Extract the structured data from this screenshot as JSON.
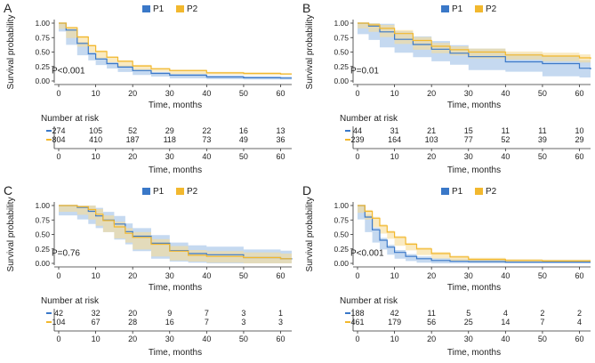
{
  "colors": {
    "p1": "#3a78c8",
    "p2": "#f2b82e",
    "p1_band": "#9fc0e6",
    "p2_band": "#f6dc97",
    "axis": "#333333",
    "text": "#222222"
  },
  "common": {
    "ylabel": "Survival probability",
    "xlabel": "Time, months",
    "risk_title": "Number at risk",
    "y_ticks": [
      "0.00",
      "0.25",
      "0.50",
      "0.75",
      "1.00"
    ],
    "x_ticks": [
      "0",
      "10",
      "20",
      "30",
      "40",
      "50",
      "60"
    ]
  },
  "chart_data": [
    {
      "type": "line",
      "panel": "A",
      "pvalue": "P<0.001",
      "legend": [
        "P1",
        "P2"
      ],
      "xlim": [
        0,
        63
      ],
      "ylim": [
        0,
        1
      ],
      "series": [
        {
          "name": "P1",
          "x": [
            0,
            2,
            5,
            8,
            10,
            13,
            16,
            20,
            25,
            30,
            40,
            50,
            60,
            63
          ],
          "y": [
            1.0,
            0.88,
            0.65,
            0.47,
            0.38,
            0.3,
            0.24,
            0.18,
            0.13,
            0.1,
            0.07,
            0.055,
            0.05,
            0.05
          ],
          "band": 0.025
        },
        {
          "name": "P2",
          "x": [
            0,
            2,
            5,
            8,
            10,
            13,
            16,
            20,
            25,
            30,
            40,
            50,
            60,
            63
          ],
          "y": [
            1.0,
            0.92,
            0.76,
            0.61,
            0.51,
            0.41,
            0.34,
            0.26,
            0.21,
            0.18,
            0.14,
            0.13,
            0.12,
            0.12
          ],
          "band": 0.018
        }
      ],
      "risk": {
        "P1": [
          "274",
          "105",
          "52",
          "29",
          "22",
          "16",
          "13"
        ],
        "P2": [
          "804",
          "410",
          "187",
          "118",
          "73",
          "49",
          "36"
        ]
      }
    },
    {
      "type": "line",
      "panel": "B",
      "pvalue": "P=0.01",
      "legend": [
        "P1",
        "P2"
      ],
      "xlim": [
        0,
        63
      ],
      "ylim": [
        0,
        1
      ],
      "series": [
        {
          "name": "P1",
          "x": [
            0,
            3,
            6,
            10,
            15,
            20,
            25,
            30,
            40,
            50,
            60,
            63
          ],
          "y": [
            1.0,
            0.95,
            0.85,
            0.72,
            0.63,
            0.55,
            0.48,
            0.42,
            0.33,
            0.3,
            0.22,
            0.2
          ],
          "band": 0.14
        },
        {
          "name": "P2",
          "x": [
            0,
            3,
            6,
            10,
            15,
            20,
            25,
            30,
            40,
            50,
            60,
            63
          ],
          "y": [
            1.0,
            0.97,
            0.91,
            0.82,
            0.7,
            0.6,
            0.54,
            0.5,
            0.45,
            0.43,
            0.4,
            0.38
          ],
          "band": 0.06
        }
      ],
      "risk": {
        "P1": [
          "44",
          "31",
          "21",
          "15",
          "11",
          "11",
          "10"
        ],
        "P2": [
          "239",
          "164",
          "103",
          "77",
          "52",
          "39",
          "29"
        ]
      }
    },
    {
      "type": "line",
      "panel": "C",
      "pvalue": "P=0.76",
      "legend": [
        "P1",
        "P2"
      ],
      "xlim": [
        0,
        63
      ],
      "ylim": [
        0,
        1
      ],
      "series": [
        {
          "name": "P1",
          "x": [
            0,
            5,
            8,
            10,
            12,
            15,
            18,
            20,
            25,
            30,
            35,
            40,
            50,
            60,
            63
          ],
          "y": [
            1.0,
            0.97,
            0.9,
            0.82,
            0.75,
            0.68,
            0.55,
            0.47,
            0.35,
            0.22,
            0.17,
            0.15,
            0.1,
            0.08,
            0.07
          ],
          "band": 0.14
        },
        {
          "name": "P2",
          "x": [
            0,
            5,
            8,
            10,
            12,
            15,
            18,
            20,
            25,
            30,
            35,
            40,
            50,
            60,
            63
          ],
          "y": [
            1.0,
            0.98,
            0.93,
            0.85,
            0.74,
            0.63,
            0.52,
            0.45,
            0.33,
            0.21,
            0.14,
            0.12,
            0.1,
            0.08,
            0.08
          ],
          "band": 0.09
        }
      ],
      "risk": {
        "P1": [
          "42",
          "32",
          "20",
          "9",
          "7",
          "3",
          "1"
        ],
        "P2": [
          "104",
          "67",
          "28",
          "16",
          "7",
          "3",
          "3"
        ]
      }
    },
    {
      "type": "line",
      "panel": "D",
      "pvalue": "P<0.001",
      "legend": [
        "P1",
        "P2"
      ],
      "xlim": [
        0,
        63
      ],
      "ylim": [
        0,
        1
      ],
      "series": [
        {
          "name": "P1",
          "x": [
            0,
            2,
            4,
            6,
            8,
            10,
            13,
            16,
            20,
            25,
            30,
            40,
            50,
            60,
            63
          ],
          "y": [
            1.0,
            0.8,
            0.58,
            0.4,
            0.28,
            0.19,
            0.12,
            0.08,
            0.05,
            0.035,
            0.03,
            0.02,
            0.02,
            0.02,
            0.02
          ],
          "band": 0.04
        },
        {
          "name": "P2",
          "x": [
            0,
            2,
            4,
            6,
            8,
            10,
            13,
            16,
            20,
            25,
            30,
            40,
            50,
            60,
            63
          ],
          "y": [
            1.0,
            0.9,
            0.78,
            0.65,
            0.54,
            0.45,
            0.33,
            0.25,
            0.17,
            0.11,
            0.07,
            0.05,
            0.04,
            0.04,
            0.04
          ],
          "band": 0.025
        }
      ],
      "risk": {
        "P1": [
          "188",
          "42",
          "11",
          "5",
          "4",
          "2",
          "2"
        ],
        "P2": [
          "461",
          "179",
          "56",
          "25",
          "14",
          "7",
          "4"
        ]
      }
    }
  ]
}
